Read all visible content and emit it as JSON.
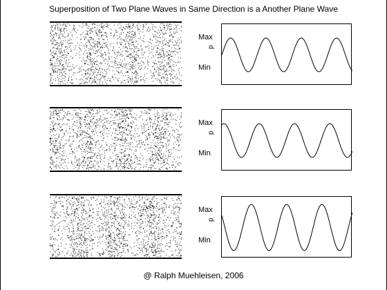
{
  "title": "Superposition of Two Plane Waves in Same Direction is a Another Plane Wave",
  "credit": "@ Ralph Muehleisen, 2006",
  "panels": [
    {
      "max_label": "Max",
      "axis_label": "p",
      "min_label": "Min"
    },
    {
      "max_label": "Max",
      "axis_label": "p",
      "min_label": "Min"
    },
    {
      "max_label": "Max",
      "axis_label": "p",
      "min_label": "Min"
    }
  ],
  "chart_data": [
    {
      "type": "line",
      "series": [
        {
          "values_description_free": true,
          "periods": 3.7,
          "phase": 0.0,
          "amplitude": 0.55
        }
      ]
    },
    {
      "type": "line",
      "series": [
        {
          "values_description_free": true,
          "periods": 3.7,
          "phase": 1.2,
          "amplitude": 0.55
        }
      ]
    },
    {
      "type": "line",
      "series": [
        {
          "values_description_free": true,
          "periods": 3.7,
          "phase": 2.6,
          "amplitude": 0.75
        }
      ]
    }
  ]
}
